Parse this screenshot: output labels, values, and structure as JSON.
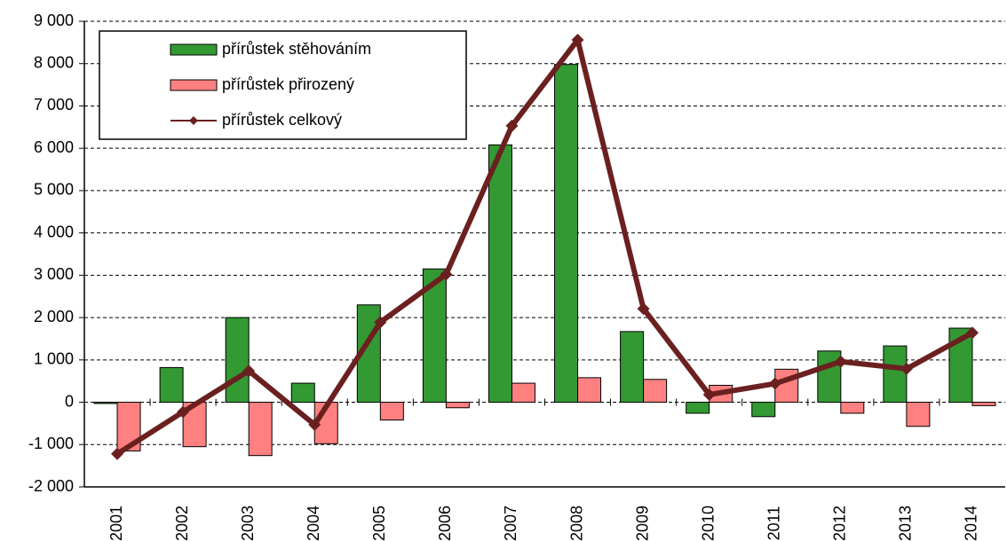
{
  "chart_data": {
    "type": "bar_line",
    "categories": [
      "2001",
      "2002",
      "2003",
      "2004",
      "2005",
      "2006",
      "2007",
      "2008",
      "2009",
      "2010",
      "2011",
      "2012",
      "2013",
      "2014"
    ],
    "series": [
      {
        "name": "přírůstek stěhováním",
        "type": "bar",
        "color": "#339933",
        "values": [
          -30,
          820,
          2000,
          450,
          2300,
          3150,
          6080,
          7980,
          1670,
          -260,
          -340,
          1210,
          1330,
          1750
        ]
      },
      {
        "name": "přírůstek přirozený",
        "type": "bar",
        "color": "#ff8080",
        "values": [
          -1150,
          -1050,
          -1260,
          -980,
          -420,
          -130,
          450,
          580,
          540,
          400,
          780,
          -260,
          -570,
          -80
        ]
      },
      {
        "name": "přírůstek celkový",
        "type": "line",
        "color": "#6b2020",
        "values": [
          -1220,
          -230,
          740,
          -530,
          1890,
          3020,
          6530,
          8560,
          2210,
          180,
          440,
          960,
          790,
          1640
        ]
      }
    ],
    "ylim": [
      -2000,
      9000
    ],
    "yticks": [
      {
        "value": -2000,
        "label": "-2 000"
      },
      {
        "value": -1000,
        "label": "-1 000"
      },
      0,
      {
        "value": 1000,
        "label": "1 000"
      },
      {
        "value": 2000,
        "label": "2 000"
      },
      {
        "value": 3000,
        "label": "3 000"
      },
      {
        "value": 4000,
        "label": "4 000"
      },
      {
        "value": 5000,
        "label": "5 000"
      },
      {
        "value": 6000,
        "label": "6 000"
      },
      {
        "value": 7000,
        "label": "7 000"
      },
      {
        "value": 8000,
        "label": "8 000"
      },
      {
        "value": 9000,
        "label": "9 000"
      }
    ],
    "grid": true,
    "legend": "upper left"
  }
}
